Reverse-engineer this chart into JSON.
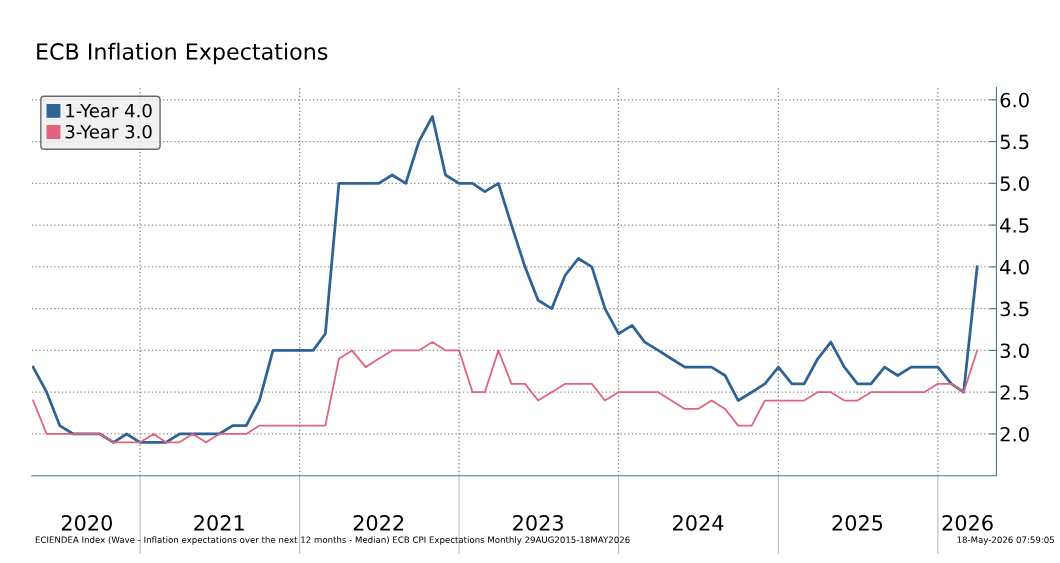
{
  "chart_data": {
    "type": "line",
    "title": "ECB Inflation Expectations",
    "x": [
      "2020-05",
      "2020-06",
      "2020-07",
      "2020-08",
      "2020-09",
      "2020-10",
      "2020-11",
      "2020-12",
      "2021-01",
      "2021-02",
      "2021-03",
      "2021-04",
      "2021-05",
      "2021-06",
      "2021-07",
      "2021-08",
      "2021-09",
      "2021-10",
      "2021-11",
      "2021-12",
      "2022-01",
      "2022-02",
      "2022-03",
      "2022-04",
      "2022-05",
      "2022-06",
      "2022-07",
      "2022-08",
      "2022-09",
      "2022-10",
      "2022-11",
      "2022-12",
      "2023-01",
      "2023-02",
      "2023-03",
      "2023-04",
      "2023-05",
      "2023-06",
      "2023-07",
      "2023-08",
      "2023-09",
      "2023-10",
      "2023-11",
      "2023-12",
      "2024-01",
      "2024-02",
      "2024-03",
      "2024-04",
      "2024-05",
      "2024-06",
      "2024-07",
      "2024-08",
      "2024-09",
      "2024-10",
      "2024-11",
      "2024-12",
      "2025-01",
      "2025-02",
      "2025-03",
      "2025-04",
      "2025-05",
      "2025-06",
      "2025-07",
      "2025-08",
      "2025-09",
      "2025-10",
      "2025-11",
      "2025-12",
      "2026-01",
      "2026-02",
      "2026-03",
      "2026-04"
    ],
    "series": [
      {
        "name": "1-Year 4.0",
        "color": "#2f6394",
        "values": [
          2.8,
          2.5,
          2.1,
          2.0,
          2.0,
          2.0,
          1.9,
          2.0,
          1.9,
          1.9,
          1.9,
          2.0,
          2.0,
          2.0,
          2.0,
          2.1,
          2.1,
          2.4,
          3.0,
          3.0,
          3.0,
          3.0,
          3.2,
          5.0,
          5.0,
          5.0,
          5.0,
          5.1,
          5.0,
          5.5,
          5.8,
          5.1,
          5.0,
          5.0,
          4.9,
          5.0,
          4.5,
          4.0,
          3.6,
          3.5,
          3.9,
          4.1,
          4.0,
          3.5,
          3.2,
          3.3,
          3.1,
          3.0,
          2.9,
          2.8,
          2.8,
          2.8,
          2.7,
          2.4,
          2.5,
          2.6,
          2.8,
          2.6,
          2.6,
          2.9,
          3.1,
          2.8,
          2.6,
          2.6,
          2.8,
          2.7,
          2.8,
          2.8,
          2.8,
          2.6,
          2.5,
          4.0
        ]
      },
      {
        "name": "3-Year 3.0",
        "color": "#e0647c",
        "values": [
          2.4,
          2.0,
          2.0,
          2.0,
          2.0,
          2.0,
          1.9,
          1.9,
          1.9,
          2.0,
          1.9,
          1.9,
          2.0,
          1.9,
          2.0,
          2.0,
          2.0,
          2.1,
          2.1,
          2.1,
          2.1,
          2.1,
          2.1,
          2.9,
          3.0,
          2.8,
          2.9,
          3.0,
          3.0,
          3.0,
          3.1,
          3.0,
          3.0,
          2.5,
          2.5,
          3.0,
          2.6,
          2.6,
          2.4,
          2.5,
          2.6,
          2.6,
          2.6,
          2.4,
          2.5,
          2.5,
          2.5,
          2.5,
          2.4,
          2.3,
          2.3,
          2.4,
          2.3,
          2.1,
          2.1,
          2.4,
          2.4,
          2.4,
          2.4,
          2.5,
          2.5,
          2.4,
          2.4,
          2.5,
          2.5,
          2.5,
          2.5,
          2.5,
          2.6,
          2.6,
          2.5,
          3.0
        ]
      }
    ],
    "xlim": [
      "2020-04-28",
      "2026-05-15"
    ],
    "xticks": [
      {
        "value": "2020-09-01",
        "label": "2020"
      },
      {
        "value": "2021-01-01",
        "label": null
      },
      {
        "value": "2021-07-01",
        "label": "2021"
      },
      {
        "value": "2022-01-01",
        "label": null
      },
      {
        "value": "2022-07-01",
        "label": "2022"
      },
      {
        "value": "2023-01-01",
        "label": null
      },
      {
        "value": "2023-07-01",
        "label": "2023"
      },
      {
        "value": "2024-01-01",
        "label": null
      },
      {
        "value": "2024-07-01",
        "label": "2024"
      },
      {
        "value": "2025-01-01",
        "label": null
      },
      {
        "value": "2025-07-01",
        "label": "2025"
      },
      {
        "value": "2026-01-01",
        "label": null
      },
      {
        "value": "2026-03-10",
        "label": "2026"
      }
    ],
    "ylim": [
      1.5,
      6.15
    ],
    "yticks": [
      {
        "value": 2.0,
        "label": "2.0"
      },
      {
        "value": 2.5,
        "label": "2.5"
      },
      {
        "value": 3.0,
        "label": "3.0"
      },
      {
        "value": 3.5,
        "label": "3.5"
      },
      {
        "value": 4.0,
        "label": "4.0"
      },
      {
        "value": 4.5,
        "label": "4.5"
      },
      {
        "value": 5.0,
        "label": "5.0"
      },
      {
        "value": 5.5,
        "label": "5.5"
      },
      {
        "value": 6.0,
        "label": "6.0"
      }
    ],
    "grid": true,
    "legend": "top left",
    "marker": "none",
    "line_style": "solid",
    "annotations": [
      "ECIENDEA Index (Wave - Inflation expectations over the next 12 months - Median) ECB CPI Expectations Monthly 29AUG2015-18MAY2026",
      "18-May-2026 07:59:05"
    ]
  }
}
